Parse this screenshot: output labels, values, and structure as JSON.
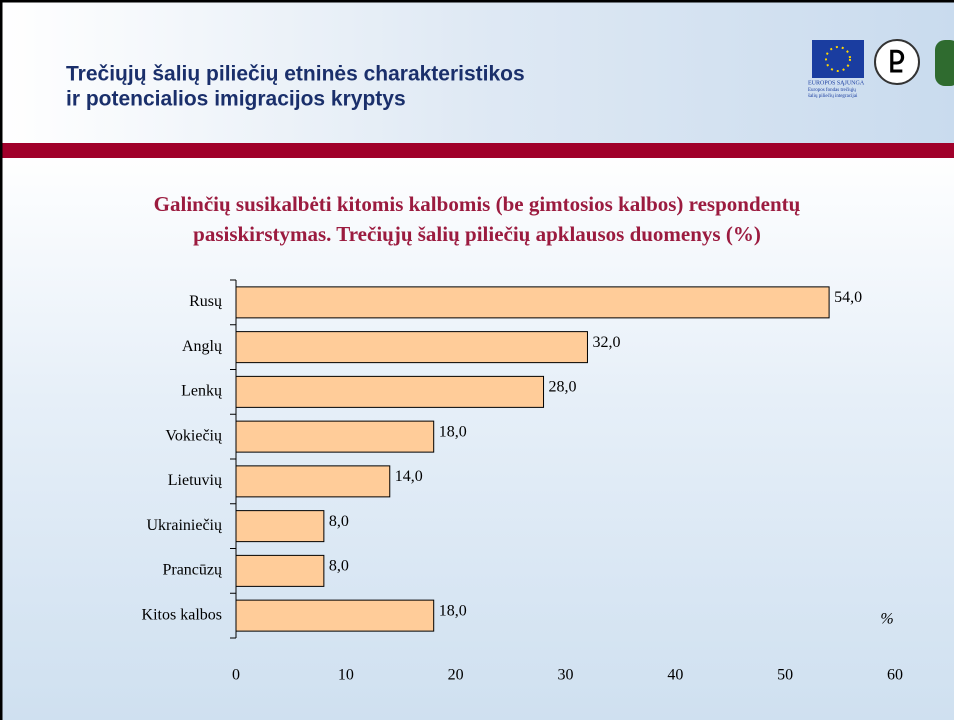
{
  "header": {
    "title_line1": "Trečiųjų šalių piliečių etninės charakteristikos",
    "title_line2": "ir potencialios imigracijos kryptys",
    "logo_text1": "EUROPOS SĄJUNGA",
    "logo_text2": "Europos fondas trečiųjų",
    "logo_text3": "šalių piliečių integracijai"
  },
  "chart_data": {
    "type": "hbar",
    "title_line1": "Galinčių susikalbėti kitomis  kalbomis (be gimtosios kalbos) respondentų",
    "title_line2": "pasiskirstymas. Trečiųjų šalių piliečių apklausos duomenys (%)",
    "categories": [
      "Rusų",
      "Anglų",
      "Lenkų",
      "Vokiečių",
      "Lietuvių",
      "Ukrainiečių",
      "Prancūzų",
      "Kitos kalbos"
    ],
    "values": [
      54,
      32,
      28,
      18,
      14,
      8,
      8,
      18
    ],
    "value_labels": [
      "54,0",
      "32,0",
      "28,0",
      "18,0",
      "14,0",
      "8,0",
      "8,0",
      "18,0"
    ],
    "color": "#ffcc99",
    "xlim": [
      0,
      60
    ],
    "xticks": [
      0,
      10,
      20,
      30,
      40,
      50,
      60
    ],
    "x_unit_label": "%"
  }
}
